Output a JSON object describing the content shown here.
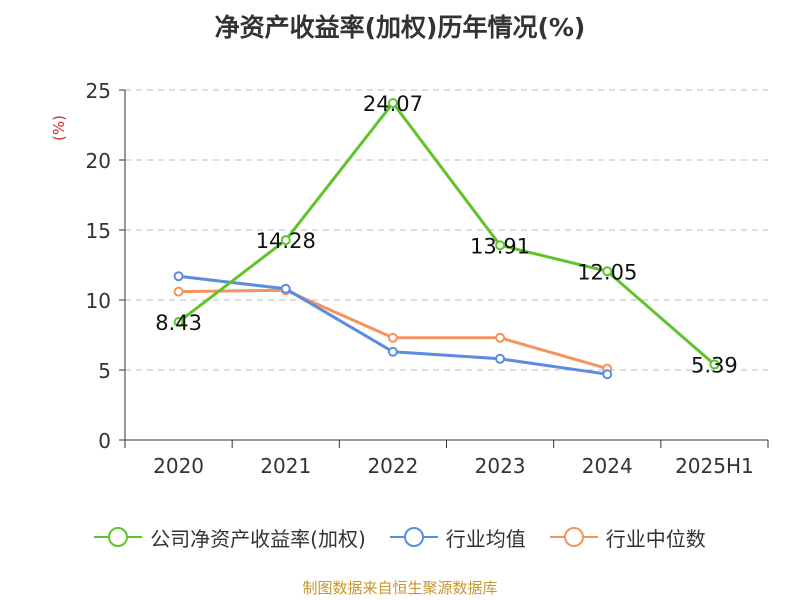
{
  "chart_data": {
    "type": "line",
    "title": "净资产收益率(加权)历年情况(%)",
    "ylabel": "(%)",
    "categories": [
      "2020",
      "2021",
      "2022",
      "2023",
      "2024",
      "2025H1"
    ],
    "ylim": [
      0,
      25
    ],
    "yticks": [
      "0",
      "5",
      "10",
      "15",
      "20",
      "25"
    ],
    "grid": true,
    "legend_position": "bottom",
    "series": [
      {
        "name": "公司净资产收益率(加权)",
        "color": "#5ec42a",
        "values": [
          8.43,
          14.28,
          24.07,
          13.91,
          12.05,
          5.39
        ],
        "labels": [
          "8.43",
          "14.28",
          "24.07",
          "13.91",
          "12.05",
          "5.39"
        ]
      },
      {
        "name": "行业均值",
        "color": "#5b8ce0",
        "values": [
          11.7,
          10.8,
          6.3,
          5.8,
          4.7,
          null
        ]
      },
      {
        "name": "行业中位数",
        "color": "#f5935e",
        "values": [
          10.6,
          10.7,
          7.3,
          7.3,
          5.1,
          null
        ]
      }
    ]
  },
  "source_note": "制图数据来自恒生聚源数据库"
}
